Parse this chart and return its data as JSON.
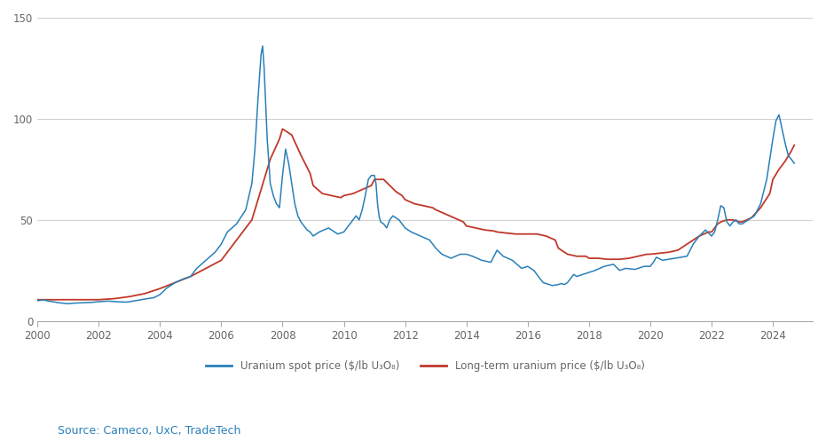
{
  "xlim": [
    2000,
    2025.3
  ],
  "ylim": [
    0,
    150
  ],
  "yticks": [
    0,
    50,
    100,
    150
  ],
  "xticks": [
    2000,
    2002,
    2004,
    2006,
    2008,
    2010,
    2012,
    2014,
    2016,
    2018,
    2020,
    2022,
    2024
  ],
  "background_color": "#ffffff",
  "grid_color": "#d0d0d0",
  "spot_color": "#2980b9",
  "longterm_color": "#c0392b",
  "source_text": "Source: Cameco, UxC, TradeTech",
  "source_color": "#2980b9",
  "legend_spot": "Uranium spot price ($/lb U₃O₈)",
  "legend_longterm": "Long-term uranium price ($/lb U₃O₈)",
  "spot_x": [
    2000.0,
    2000.1,
    2000.2,
    2000.3,
    2000.5,
    2000.7,
    2001.0,
    2001.2,
    2001.5,
    2001.8,
    2002.0,
    2002.3,
    2002.6,
    2002.9,
    2003.0,
    2003.2,
    2003.5,
    2003.8,
    2004.0,
    2004.2,
    2004.5,
    2004.8,
    2005.0,
    2005.2,
    2005.5,
    2005.8,
    2006.0,
    2006.2,
    2006.5,
    2006.8,
    2007.0,
    2007.1,
    2007.2,
    2007.3,
    2007.35,
    2007.4,
    2007.5,
    2007.6,
    2007.7,
    2007.8,
    2007.9,
    2008.0,
    2008.1,
    2008.2,
    2008.3,
    2008.4,
    2008.5,
    2008.6,
    2008.7,
    2008.8,
    2008.9,
    2009.0,
    2009.2,
    2009.5,
    2009.8,
    2010.0,
    2010.1,
    2010.2,
    2010.3,
    2010.4,
    2010.5,
    2010.6,
    2010.7,
    2010.8,
    2010.9,
    2011.0,
    2011.05,
    2011.1,
    2011.15,
    2011.2,
    2011.3,
    2011.4,
    2011.5,
    2011.6,
    2011.7,
    2011.8,
    2011.9,
    2012.0,
    2012.2,
    2012.5,
    2012.8,
    2013.0,
    2013.2,
    2013.5,
    2013.8,
    2014.0,
    2014.2,
    2014.5,
    2014.8,
    2015.0,
    2015.2,
    2015.5,
    2015.8,
    2016.0,
    2016.2,
    2016.5,
    2016.8,
    2017.0,
    2017.1,
    2017.2,
    2017.3,
    2017.4,
    2017.5,
    2017.6,
    2017.8,
    2018.0,
    2018.2,
    2018.5,
    2018.8,
    2019.0,
    2019.2,
    2019.5,
    2019.8,
    2020.0,
    2020.1,
    2020.2,
    2020.4,
    2020.6,
    2020.8,
    2021.0,
    2021.2,
    2021.4,
    2021.6,
    2021.8,
    2022.0,
    2022.1,
    2022.2,
    2022.3,
    2022.4,
    2022.5,
    2022.6,
    2022.7,
    2022.8,
    2022.9,
    2023.0,
    2023.2,
    2023.4,
    2023.6,
    2023.8,
    2024.0,
    2024.1,
    2024.2,
    2024.3,
    2024.4,
    2024.5,
    2024.7
  ],
  "spot_y": [
    10.0,
    10.2,
    10.5,
    10.0,
    9.5,
    9.0,
    8.5,
    8.8,
    9.0,
    9.2,
    9.5,
    9.8,
    9.5,
    9.3,
    9.5,
    10.0,
    10.8,
    11.5,
    13.0,
    16.0,
    19.0,
    21.0,
    22.0,
    26.0,
    30.0,
    34.0,
    38.0,
    44.0,
    48.0,
    55.0,
    68.0,
    85.0,
    110.0,
    132.0,
    136.0,
    125.0,
    90.0,
    68.0,
    62.0,
    58.0,
    56.0,
    72.0,
    85.0,
    78.0,
    68.0,
    58.0,
    52.0,
    49.0,
    47.0,
    45.0,
    44.0,
    42.0,
    44.0,
    46.0,
    43.0,
    44.0,
    46.0,
    48.0,
    50.0,
    52.0,
    50.0,
    55.0,
    62.0,
    70.0,
    72.0,
    72.0,
    68.0,
    58.0,
    52.0,
    49.0,
    48.0,
    46.0,
    50.0,
    52.0,
    51.0,
    50.0,
    48.0,
    46.0,
    44.0,
    42.0,
    40.0,
    36.0,
    33.0,
    31.0,
    33.0,
    33.0,
    32.0,
    30.0,
    29.0,
    35.0,
    32.0,
    30.0,
    26.0,
    27.0,
    25.0,
    19.0,
    17.5,
    18.0,
    18.5,
    18.0,
    19.0,
    21.0,
    23.0,
    22.0,
    23.0,
    24.0,
    25.0,
    27.0,
    28.0,
    25.0,
    26.0,
    25.5,
    27.0,
    27.0,
    29.0,
    31.5,
    30.0,
    30.5,
    31.0,
    31.5,
    32.0,
    38.0,
    42.0,
    45.0,
    42.0,
    44.0,
    50.0,
    57.0,
    56.0,
    49.0,
    47.0,
    49.0,
    50.0,
    48.0,
    48.0,
    50.0,
    52.0,
    58.0,
    70.0,
    90.0,
    99.0,
    102.0,
    95.0,
    88.0,
    82.0,
    78.0
  ],
  "lt_x": [
    2000.0,
    2000.3,
    2000.6,
    2001.0,
    2001.5,
    2002.0,
    2002.5,
    2003.0,
    2003.5,
    2004.0,
    2004.5,
    2005.0,
    2005.5,
    2006.0,
    2006.3,
    2006.6,
    2007.0,
    2007.3,
    2007.6,
    2007.9,
    2008.0,
    2008.3,
    2008.6,
    2008.9,
    2009.0,
    2009.3,
    2009.6,
    2009.9,
    2010.0,
    2010.3,
    2010.6,
    2010.9,
    2011.0,
    2011.3,
    2011.5,
    2011.7,
    2011.9,
    2012.0,
    2012.3,
    2012.6,
    2012.9,
    2013.0,
    2013.3,
    2013.6,
    2013.9,
    2014.0,
    2014.3,
    2014.6,
    2014.9,
    2015.0,
    2015.3,
    2015.6,
    2015.9,
    2016.0,
    2016.3,
    2016.6,
    2016.9,
    2017.0,
    2017.3,
    2017.6,
    2017.9,
    2018.0,
    2018.3,
    2018.6,
    2018.9,
    2019.0,
    2019.3,
    2019.6,
    2019.9,
    2020.0,
    2020.3,
    2020.6,
    2020.9,
    2021.0,
    2021.3,
    2021.6,
    2021.9,
    2022.0,
    2022.1,
    2022.2,
    2022.3,
    2022.5,
    2022.7,
    2022.9,
    2023.0,
    2023.3,
    2023.6,
    2023.9,
    2024.0,
    2024.2,
    2024.4,
    2024.6,
    2024.7
  ],
  "lt_y": [
    10.5,
    10.5,
    10.5,
    10.5,
    10.5,
    10.5,
    11.0,
    12.0,
    13.5,
    16.0,
    19.0,
    22.0,
    26.0,
    30.0,
    36.0,
    42.0,
    50.0,
    65.0,
    80.0,
    90.0,
    95.0,
    92.0,
    82.0,
    73.0,
    67.0,
    63.0,
    62.0,
    61.0,
    62.0,
    63.0,
    65.0,
    67.0,
    70.0,
    70.0,
    67.0,
    64.0,
    62.0,
    60.0,
    58.0,
    57.0,
    56.0,
    55.0,
    53.0,
    51.0,
    49.0,
    47.0,
    46.0,
    45.0,
    44.5,
    44.0,
    43.5,
    43.0,
    43.0,
    43.0,
    43.0,
    42.0,
    40.0,
    36.0,
    33.0,
    32.0,
    32.0,
    31.0,
    31.0,
    30.5,
    30.5,
    30.5,
    31.0,
    32.0,
    33.0,
    33.0,
    33.5,
    34.0,
    35.0,
    36.0,
    39.0,
    42.0,
    44.0,
    44.0,
    46.0,
    48.0,
    49.0,
    50.0,
    50.0,
    49.0,
    49.0,
    51.0,
    56.0,
    63.0,
    70.0,
    75.0,
    79.0,
    84.0,
    87.0
  ]
}
